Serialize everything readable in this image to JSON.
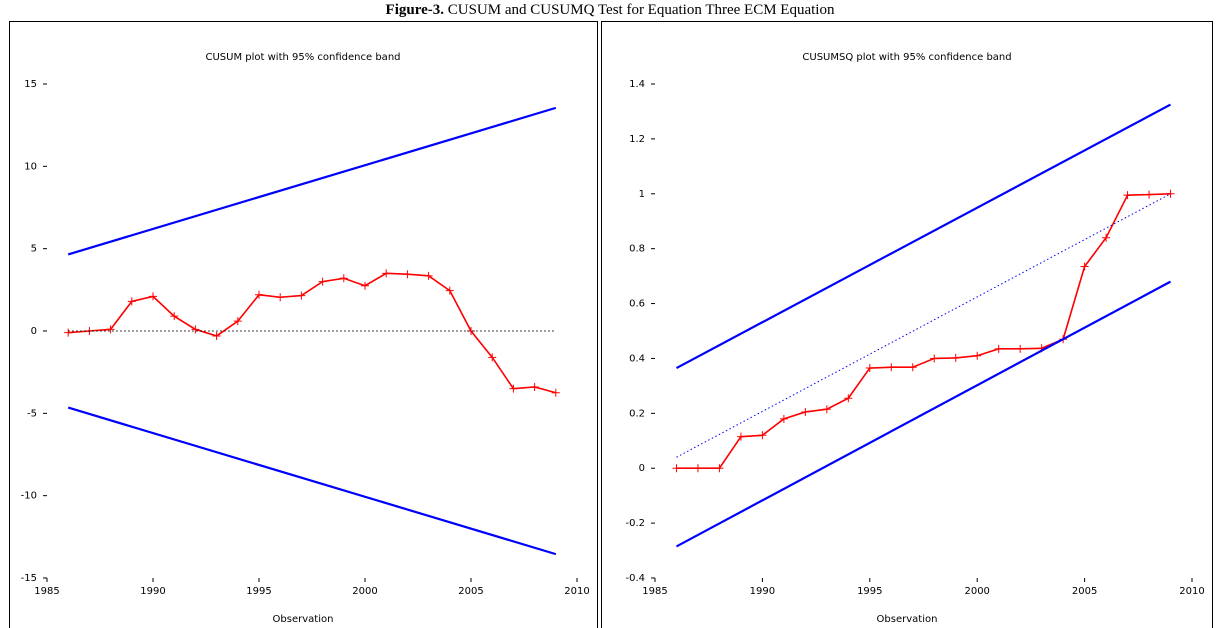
{
  "caption": {
    "label": "Figure-3.",
    "text": "CUSUM and CUSUMQ Test for Equation Three ECM Equation"
  },
  "chart_data": [
    {
      "type": "line",
      "title": "CUSUM plot with 95% confidence band",
      "xlabel": "Observation",
      "xlim": [
        1985,
        2010
      ],
      "xticks": [
        1985,
        1990,
        1995,
        2000,
        2005,
        2010
      ],
      "ylim": [
        -15,
        15
      ],
      "yticks": [
        -15,
        -10,
        -5,
        0,
        5,
        10,
        15
      ],
      "series": [
        {
          "color": "#ff0000",
          "style": "solid",
          "marker": "+",
          "x": [
            1986,
            1987,
            1988,
            1989,
            1990,
            1991,
            1992,
            1993,
            1994,
            1995,
            1996,
            1997,
            1998,
            1999,
            2000,
            2001,
            2002,
            2003,
            2004,
            2005,
            2006,
            2007,
            2008,
            2009
          ],
          "values": [
            -0.1,
            0,
            0.1,
            1.8,
            2.1,
            0.9,
            0.1,
            -0.3,
            0.6,
            2.2,
            2.05,
            2.15,
            3.0,
            3.2,
            2.75,
            3.5,
            3.45,
            3.35,
            2.45,
            0,
            -1.6,
            -3.5,
            -3.4,
            -3.75
          ]
        },
        {
          "color": "#0000ff",
          "style": "solid",
          "x": [
            1986,
            2009
          ],
          "values": [
            4.65,
            13.55
          ]
        },
        {
          "color": "#0000ff",
          "style": "solid",
          "x": [
            1986,
            2009
          ],
          "values": [
            -4.65,
            -13.55
          ]
        },
        {
          "color": "#000000",
          "style": "dotted",
          "x": [
            1986,
            2009
          ],
          "values": [
            0,
            0
          ]
        }
      ]
    },
    {
      "type": "line",
      "title": "CUSUMSQ plot with 95% confidence band",
      "xlabel": "Observation",
      "xlim": [
        1985,
        2010
      ],
      "xticks": [
        1985,
        1990,
        1995,
        2000,
        2005,
        2010
      ],
      "ylim": [
        -0.4,
        1.4
      ],
      "yticks": [
        -0.4,
        -0.2,
        0,
        0.2,
        0.4,
        0.6,
        0.8,
        1,
        1.2,
        1.4
      ],
      "series": [
        {
          "color": "#ff0000",
          "style": "solid",
          "marker": "+",
          "x": [
            1986,
            1987,
            1988,
            1989,
            1990,
            1991,
            1992,
            1993,
            1994,
            1995,
            1996,
            1997,
            1998,
            1999,
            2000,
            2001,
            2002,
            2003,
            2004,
            2005,
            2006,
            2007,
            2008,
            2009
          ],
          "values": [
            0,
            0,
            0,
            0.115,
            0.12,
            0.18,
            0.205,
            0.215,
            0.255,
            0.365,
            0.368,
            0.368,
            0.4,
            0.402,
            0.41,
            0.435,
            0.435,
            0.437,
            0.47,
            0.735,
            0.84,
            0.995,
            0.997,
            1.0
          ]
        },
        {
          "color": "#0000ff",
          "style": "solid",
          "x": [
            1986,
            2009
          ],
          "values": [
            0.365,
            1.325
          ]
        },
        {
          "color": "#0000ff",
          "style": "solid",
          "x": [
            1986,
            2009
          ],
          "values": [
            -0.285,
            0.68
          ]
        },
        {
          "color": "#0000ff",
          "style": "dotted",
          "x": [
            1986,
            2009
          ],
          "values": [
            0.04,
            1.0
          ]
        }
      ]
    }
  ]
}
